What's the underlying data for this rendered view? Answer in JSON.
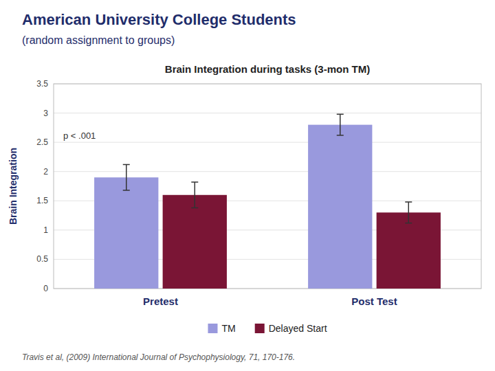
{
  "chart_data": {
    "type": "bar",
    "title": "American University College Students",
    "subtitle": "(random assignment to groups)",
    "chart_title": "Brain Integration during tasks (3-mon TM)",
    "ylabel": "Brain Integration",
    "categories": [
      "Pretest",
      "Post Test"
    ],
    "series": [
      {
        "name": "TM",
        "color": "#9999dd",
        "values": [
          1.9,
          2.8
        ],
        "errors": [
          0.22,
          0.18
        ]
      },
      {
        "name": "Delayed Start",
        "color": "#7a1535",
        "values": [
          1.6,
          1.3
        ],
        "errors": [
          0.22,
          0.18
        ]
      }
    ],
    "ylim": [
      0,
      3.5
    ],
    "yticks": [
      0,
      0.5,
      1,
      1.5,
      2,
      2.5,
      3,
      3.5
    ],
    "grid": true,
    "legend": "bottom",
    "annotation": "p < .001",
    "footnote": "Travis et al, (2009) International Journal of Psychophysiology, 71, 170-176."
  }
}
